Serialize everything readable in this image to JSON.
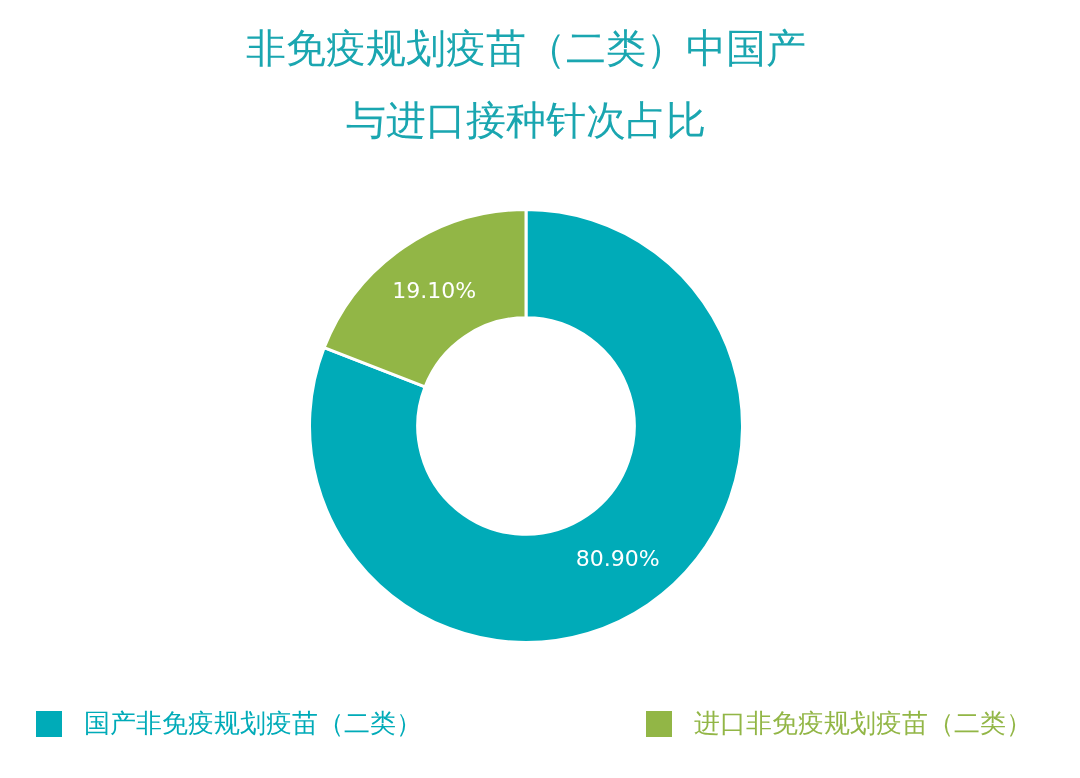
{
  "chart_data": {
    "type": "donut",
    "title": "非免疫规划疫苗（二类）中国产与进口接种针次占比",
    "categories": [
      "国产非免疫规划疫苗（二类）",
      "进口非免疫规划疫苗（二类）"
    ],
    "values": [
      80.9,
      19.1
    ],
    "colors": [
      "#00abb8",
      "#92b646"
    ],
    "value_labels": [
      "80.90%",
      "19.10%"
    ],
    "legend": "bottom"
  }
}
